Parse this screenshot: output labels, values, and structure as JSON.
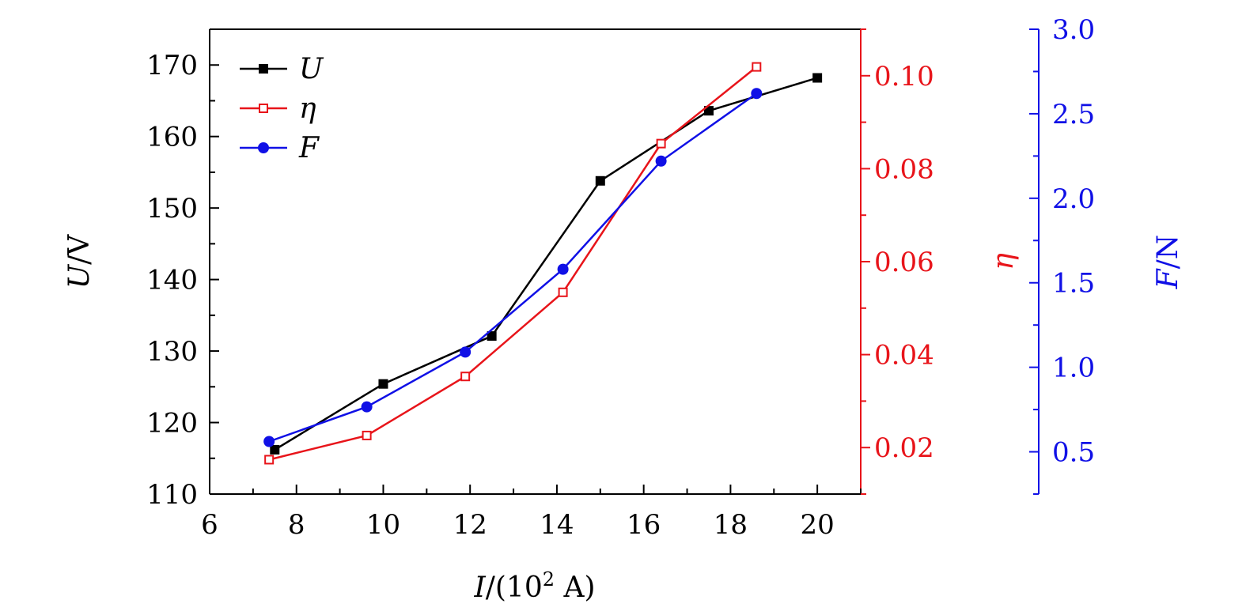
{
  "chart_data": {
    "type": "line",
    "title": "",
    "xlabel": "I/(10² A)",
    "xlabel_parts": {
      "var": "I",
      "rest": "/(10",
      "sup": "2",
      "end": " A)"
    },
    "xlim": [
      6,
      21
    ],
    "xticks": [
      "6",
      "8",
      "10",
      "12",
      "14",
      "16",
      "18",
      "20"
    ],
    "axes": [
      {
        "id": "U",
        "label_var": "U",
        "label_rest": "/V",
        "ylim": [
          110,
          175
        ],
        "ticks": [
          "110",
          "120",
          "130",
          "140",
          "150",
          "160",
          "170"
        ],
        "major": 10,
        "minor": 5,
        "color": "#000000"
      },
      {
        "id": "eta",
        "label_var": "η",
        "label_rest": "",
        "ylim": [
          0.01,
          0.11
        ],
        "ticks": [
          "0.02",
          "0.04",
          "0.06",
          "0.08",
          "0.10"
        ],
        "major": 0.02,
        "minor": 0.01,
        "color": "#e8141a"
      },
      {
        "id": "F",
        "label_var": "F",
        "label_rest": "/N",
        "ylim": [
          0.25,
          3.0
        ],
        "ticks": [
          "0.5",
          "1.0",
          "1.5",
          "2.0",
          "2.5",
          "3.0"
        ],
        "major": 0.5,
        "minor": 0.25,
        "color": "#1010e6"
      }
    ],
    "series": [
      {
        "name": "U",
        "axis": "U",
        "marker": "square-filled",
        "color": "#000000",
        "x": [
          7.5,
          10,
          12.5,
          15,
          17.5,
          20
        ],
        "y": [
          116.2,
          125.4,
          132.1,
          153.8,
          163.6,
          168.2
        ]
      },
      {
        "name": "η",
        "axis": "eta",
        "marker": "square-open",
        "color": "#e8141a",
        "x": [
          7.37,
          9.62,
          11.89,
          14.14,
          16.4,
          18.6
        ],
        "y": [
          0.0174,
          0.0226,
          0.0353,
          0.0534,
          0.0854,
          0.1019
        ]
      },
      {
        "name": "F",
        "axis": "F",
        "marker": "circle-filled",
        "color": "#1010e6",
        "x": [
          7.37,
          9.62,
          11.89,
          14.14,
          16.4,
          18.6
        ],
        "y": [
          0.561,
          0.766,
          1.09,
          1.58,
          2.22,
          2.62
        ]
      }
    ],
    "legend": "top-left",
    "grid": false
  }
}
